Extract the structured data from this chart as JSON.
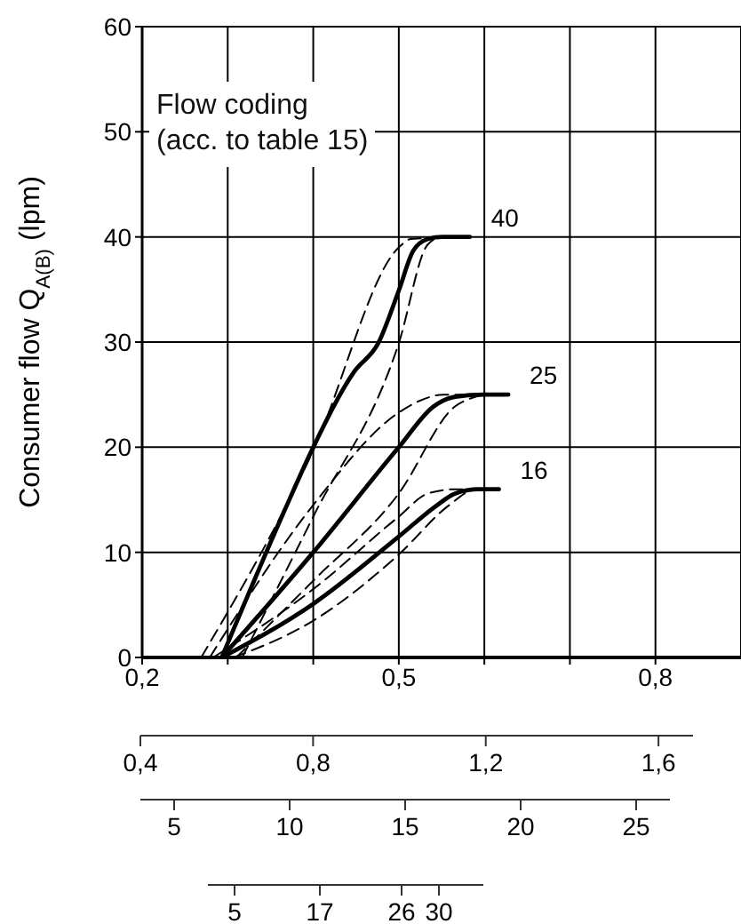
{
  "chart_data": {
    "type": "line",
    "ylabel": "Consumer flow Q$_{A(B)}$ (lpm)",
    "annotations": [
      "Flow coding\n(acc. to table 15)",
      "5",
      "10",
      "15",
      "20",
      "25",
      "5",
      "17",
      "26",
      "30"
    ],
    "xlim": [
      0.2,
      0.9
    ],
    "xticks": [
      {
        "value": 0.2,
        "label": "0,2"
      },
      {
        "value": 0.3,
        "label": null
      },
      {
        "value": 0.4,
        "label": null
      },
      {
        "value": 0.5,
        "label": "0,5"
      },
      {
        "value": 0.6,
        "label": null
      },
      {
        "value": 0.7,
        "label": null
      },
      {
        "value": 0.8,
        "label": "0,8"
      }
    ],
    "ylim": [
      0,
      60
    ],
    "yticks": [
      0,
      10,
      20,
      30,
      40,
      50,
      60
    ],
    "x2lim": [
      0.4,
      1.68
    ],
    "x2ticks": [
      {
        "value": 0.4,
        "label": "0,4"
      },
      {
        "value": 0.8,
        "label": "0,8"
      },
      {
        "value": 1.2,
        "label": "1,2"
      },
      {
        "value": 1.6,
        "label": "1,6"
      }
    ],
    "grid": true,
    "series": [
      {
        "name": "40",
        "color": "#000000",
        "line_style": "solid",
        "x": [
          0.293,
          0.366,
          0.4,
          0.448,
          0.476,
          0.5,
          0.517,
          0.534,
          0.551,
          0.583
        ],
        "values": [
          0,
          13.9,
          20,
          27.2,
          29.9,
          34.9,
          38.7,
          39.8,
          40,
          40
        ]
      },
      {
        "color": "#000000",
        "line_style": "dashed",
        "x": [
          0.269,
          0.4,
          0.5,
          0.514,
          0.583
        ],
        "values": [
          0,
          19.7,
          39,
          39.8,
          40
        ]
      },
      {
        "color": "#000000",
        "line_style": "dashed",
        "x": [
          0.317,
          0.4,
          0.5,
          0.534,
          0.551,
          0.583
        ],
        "values": [
          0,
          13.4,
          29.9,
          39.3,
          40,
          40
        ]
      },
      {
        "name": "25",
        "color": "#000000",
        "line_style": "solid",
        "x": [
          0.293,
          0.4,
          0.5,
          0.541,
          0.566,
          0.6,
          0.628
        ],
        "values": [
          0,
          10,
          20,
          23.9,
          24.8,
          25,
          25
        ]
      },
      {
        "color": "#000000",
        "line_style": "dashed",
        "x": [
          0.279,
          0.4,
          0.5,
          0.524,
          0.552,
          0.6
        ],
        "values": [
          0,
          14.5,
          23.3,
          24.4,
          25,
          25
        ]
      },
      {
        "color": "#000000",
        "line_style": "dashed",
        "x": [
          0.31,
          0.4,
          0.5,
          0.566,
          0.586,
          0.6
        ],
        "values": [
          0,
          7.3,
          15.6,
          23.9,
          24.7,
          25
        ]
      },
      {
        "name": "16",
        "color": "#000000",
        "line_style": "solid",
        "x": [
          0.293,
          0.4,
          0.5,
          0.545,
          0.566,
          0.593,
          0.617
        ],
        "values": [
          0,
          5.1,
          11.5,
          14.5,
          15.6,
          16,
          16
        ]
      },
      {
        "color": "#000000",
        "line_style": "dashed",
        "x": [
          0.283,
          0.4,
          0.5,
          0.534,
          0.566,
          0.6
        ],
        "values": [
          0,
          6.5,
          13.4,
          15.6,
          16,
          16
        ]
      },
      {
        "color": "#000000",
        "line_style": "dashed",
        "x": [
          0.307,
          0.4,
          0.5,
          0.559,
          0.586,
          0.6
        ],
        "values": [
          0,
          3.5,
          9.8,
          14.5,
          15.9,
          16
        ]
      }
    ]
  }
}
